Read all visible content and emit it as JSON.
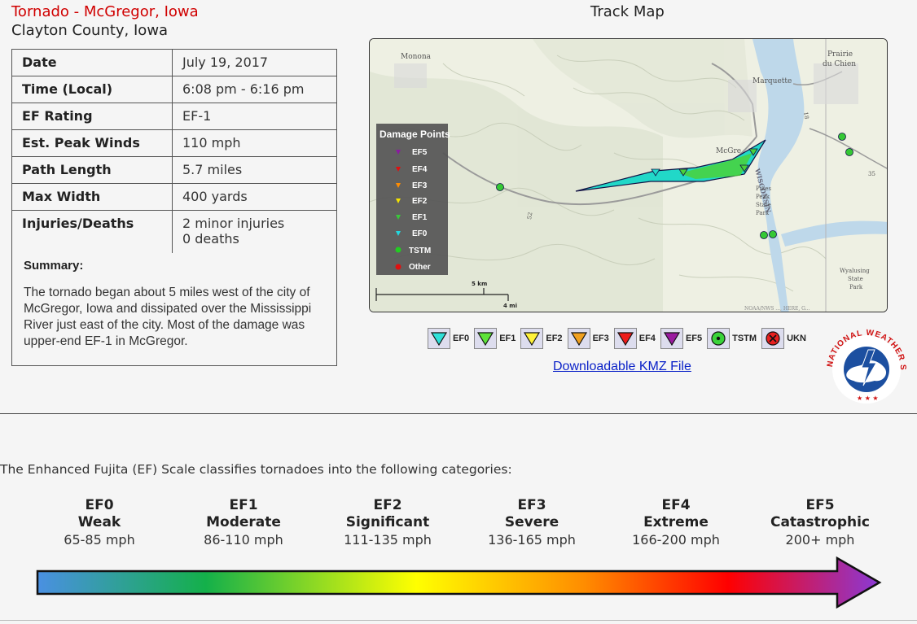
{
  "header": {
    "title": "Tornado - McGregor, Iowa",
    "county": "Clayton County, Iowa"
  },
  "info_rows": [
    {
      "label": "Date",
      "value": "July 19, 2017"
    },
    {
      "label": "Time (Local)",
      "value": "6:08 pm - 6:16 pm"
    },
    {
      "label": "EF Rating",
      "value": "EF-1"
    },
    {
      "label": "Est. Peak Winds",
      "value": "110 mph"
    },
    {
      "label": "Path Length",
      "value": "5.7 miles"
    },
    {
      "label": "Max Width",
      "value": "400 yards"
    },
    {
      "label": "Injuries/Deaths",
      "value": "2 minor injuries",
      "value2": "0 deaths"
    }
  ],
  "summary": {
    "heading": "Summary:",
    "text": "The tornado began about 5 miles west of the city of McGregor, Iowa and dissipated over the Mississippi River just east of the city. Most of the damage was upper-end EF-1 in McGregor."
  },
  "track_map": {
    "title": "Track Map",
    "places": {
      "monona": "Monona",
      "prairie": "Prairie",
      "du_chien": "du Chien",
      "marquette": "Marquette",
      "mcgregor": "McGre",
      "wisconsin": "WISCONSIN",
      "pikes": "Pikes",
      "peak": "Peak",
      "state": "State",
      "park": "Park",
      "wyalusing": "Wyalusing",
      "wy_state": "State",
      "wy_park": "Park",
      "road52": "52",
      "road18": "18",
      "road35": "35",
      "attribution": "NOAA/NWS ..., HERE, G..."
    },
    "scale": {
      "km": "5 km",
      "mi": "4 mi"
    },
    "damage_legend": {
      "title": "Damage Points",
      "items": [
        {
          "label": "EF5",
          "color": "#8a1aa0"
        },
        {
          "label": "EF4",
          "color": "#e01010"
        },
        {
          "label": "EF3",
          "color": "#ff8c00"
        },
        {
          "label": "EF2",
          "color": "#f5e400"
        },
        {
          "label": "EF1",
          "color": "#3ac83a"
        },
        {
          "label": "EF0",
          "color": "#23d8e0"
        },
        {
          "label": "TSTM",
          "color": "#22cc22"
        },
        {
          "label": "Other",
          "color": "#e01010"
        }
      ]
    }
  },
  "bottom_legend": [
    {
      "label": "EF0",
      "color": "#2fe0d9",
      "icon": "triangle-down-icon"
    },
    {
      "label": "EF1",
      "color": "#5de33a",
      "icon": "triangle-down-icon"
    },
    {
      "label": "EF2",
      "color": "#fff23a",
      "icon": "triangle-down-icon"
    },
    {
      "label": "EF3",
      "color": "#f0a020",
      "icon": "triangle-down-icon"
    },
    {
      "label": "EF4",
      "color": "#ee1c1c",
      "icon": "triangle-down-icon"
    },
    {
      "label": "EF5",
      "color": "#9a1aa0",
      "icon": "triangle-down-icon"
    },
    {
      "label": "TSTM",
      "color": "#3ad33a",
      "icon": "circle-dot-icon"
    },
    {
      "label": "UKN",
      "color": "#e82020",
      "icon": "circle-x-icon"
    }
  ],
  "kmz_link": "Downloadable KMZ File",
  "nws_logo": {
    "top_text": "NATIONAL WEATHER SERVICE"
  },
  "ef_scale": {
    "intro": "The Enhanced Fujita (EF) Scale classifies tornadoes into the following categories:",
    "categories": [
      {
        "code": "EF0",
        "name": "Weak",
        "range": "65-85 mph"
      },
      {
        "code": "EF1",
        "name": "Moderate",
        "range": "86-110 mph"
      },
      {
        "code": "EF2",
        "name": "Significant",
        "range": "111-135 mph"
      },
      {
        "code": "EF3",
        "name": "Severe",
        "range": "136-165 mph"
      },
      {
        "code": "EF4",
        "name": "Extreme",
        "range": "166-200 mph"
      },
      {
        "code": "EF5",
        "name": "Catastrophic",
        "range": "200+ mph"
      }
    ],
    "gradient_colors": [
      "#4a90e2",
      "#14b04a",
      "#ffff00",
      "#ff8c00",
      "#ff0000",
      "#8a3ad6"
    ]
  }
}
